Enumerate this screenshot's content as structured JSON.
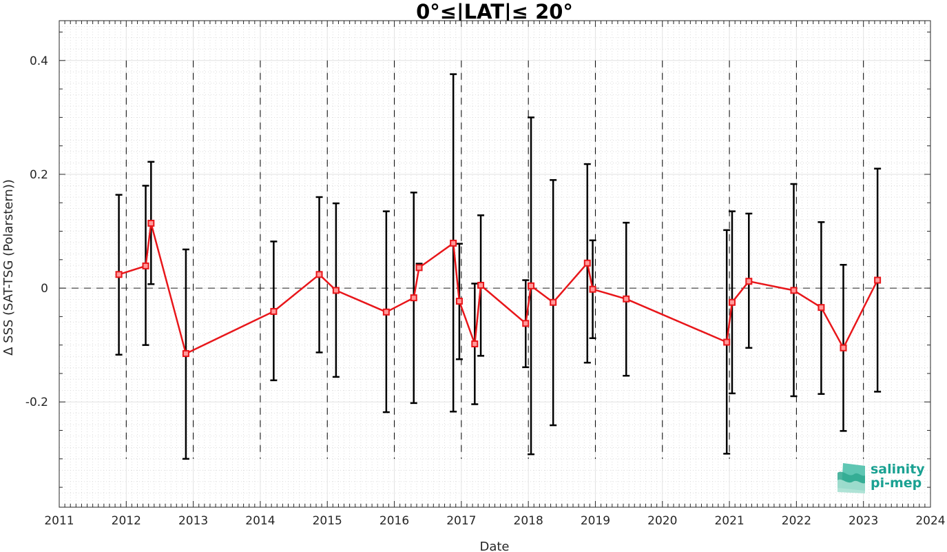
{
  "chart_data": {
    "type": "line",
    "title": "0°≤|LAT|≤ 20°",
    "xlabel": "Date",
    "ylabel": "Δ SSS (SAT-TSG (Polarstern))",
    "xlim": [
      2011,
      2024
    ],
    "ylim": [
      -0.385,
      0.47
    ],
    "x_ticks": [
      2011,
      2012,
      2013,
      2014,
      2015,
      2016,
      2017,
      2018,
      2019,
      2020,
      2021,
      2022,
      2023,
      2024
    ],
    "x_tick_labels": [
      "2011",
      "2012",
      "2013",
      "2014",
      "2015",
      "2016",
      "2017",
      "2018",
      "2019",
      "2020",
      "2021",
      "2022",
      "2023",
      "2024"
    ],
    "y_ticks": [
      -0.2,
      0,
      0.2,
      0.4
    ],
    "y_tick_labels": [
      "-0.2",
      "0",
      "0.2",
      "0.4"
    ],
    "year_boundaries": [
      2012,
      2013,
      2014,
      2015,
      2016,
      2017,
      2018,
      2019,
      2020,
      2021,
      2022,
      2023
    ],
    "zero_line": 0,
    "grid": true,
    "series": [
      {
        "color": "#e8161a",
        "marker": "square",
        "points": [
          {
            "x": 2011.89,
            "y": 0.024,
            "low": -0.117,
            "high": 0.164
          },
          {
            "x": 2012.29,
            "y": 0.039,
            "low": -0.1,
            "high": 0.18
          },
          {
            "x": 2012.37,
            "y": 0.114,
            "low": 0.007,
            "high": 0.222
          },
          {
            "x": 2012.89,
            "y": -0.115,
            "low": -0.3,
            "high": 0.068
          },
          {
            "x": 2014.2,
            "y": -0.041,
            "low": -0.162,
            "high": 0.082
          },
          {
            "x": 2014.88,
            "y": 0.024,
            "low": -0.113,
            "high": 0.16
          },
          {
            "x": 2015.13,
            "y": -0.004,
            "low": -0.156,
            "high": 0.149
          },
          {
            "x": 2015.88,
            "y": -0.042,
            "low": -0.218,
            "high": 0.135
          },
          {
            "x": 2016.29,
            "y": -0.017,
            "low": -0.202,
            "high": 0.168
          },
          {
            "x": 2016.37,
            "y": 0.036,
            "low": 0.032,
            "high": 0.043
          },
          {
            "x": 2016.88,
            "y": 0.079,
            "low": -0.217,
            "high": 0.376
          },
          {
            "x": 2016.97,
            "y": -0.023,
            "low": -0.125,
            "high": 0.078
          },
          {
            "x": 2017.2,
            "y": -0.098,
            "low": -0.204,
            "high": 0.008
          },
          {
            "x": 2017.29,
            "y": 0.005,
            "low": -0.119,
            "high": 0.128
          },
          {
            "x": 2017.96,
            "y": -0.062,
            "low": -0.139,
            "high": 0.014
          },
          {
            "x": 2018.04,
            "y": 0.004,
            "low": -0.292,
            "high": 0.3
          },
          {
            "x": 2018.37,
            "y": -0.025,
            "low": -0.241,
            "high": 0.19
          },
          {
            "x": 2018.88,
            "y": 0.044,
            "low": -0.131,
            "high": 0.218
          },
          {
            "x": 2018.96,
            "y": -0.002,
            "low": -0.088,
            "high": 0.084
          },
          {
            "x": 2019.46,
            "y": -0.019,
            "low": -0.154,
            "high": 0.115
          },
          {
            "x": 2020.96,
            "y": -0.095,
            "low": -0.291,
            "high": 0.102
          },
          {
            "x": 2021.04,
            "y": -0.025,
            "low": -0.185,
            "high": 0.135
          },
          {
            "x": 2021.29,
            "y": 0.012,
            "low": -0.105,
            "high": 0.131
          },
          {
            "x": 2021.96,
            "y": -0.004,
            "low": -0.19,
            "high": 0.183
          },
          {
            "x": 2022.37,
            "y": -0.034,
            "low": -0.186,
            "high": 0.116
          },
          {
            "x": 2022.7,
            "y": -0.105,
            "low": -0.251,
            "high": 0.041
          },
          {
            "x": 2023.21,
            "y": 0.014,
            "low": -0.182,
            "high": 0.21
          }
        ]
      }
    ]
  },
  "logo": {
    "line1": "salinity",
    "line2": "pi-mep",
    "color": "#1aa192"
  }
}
